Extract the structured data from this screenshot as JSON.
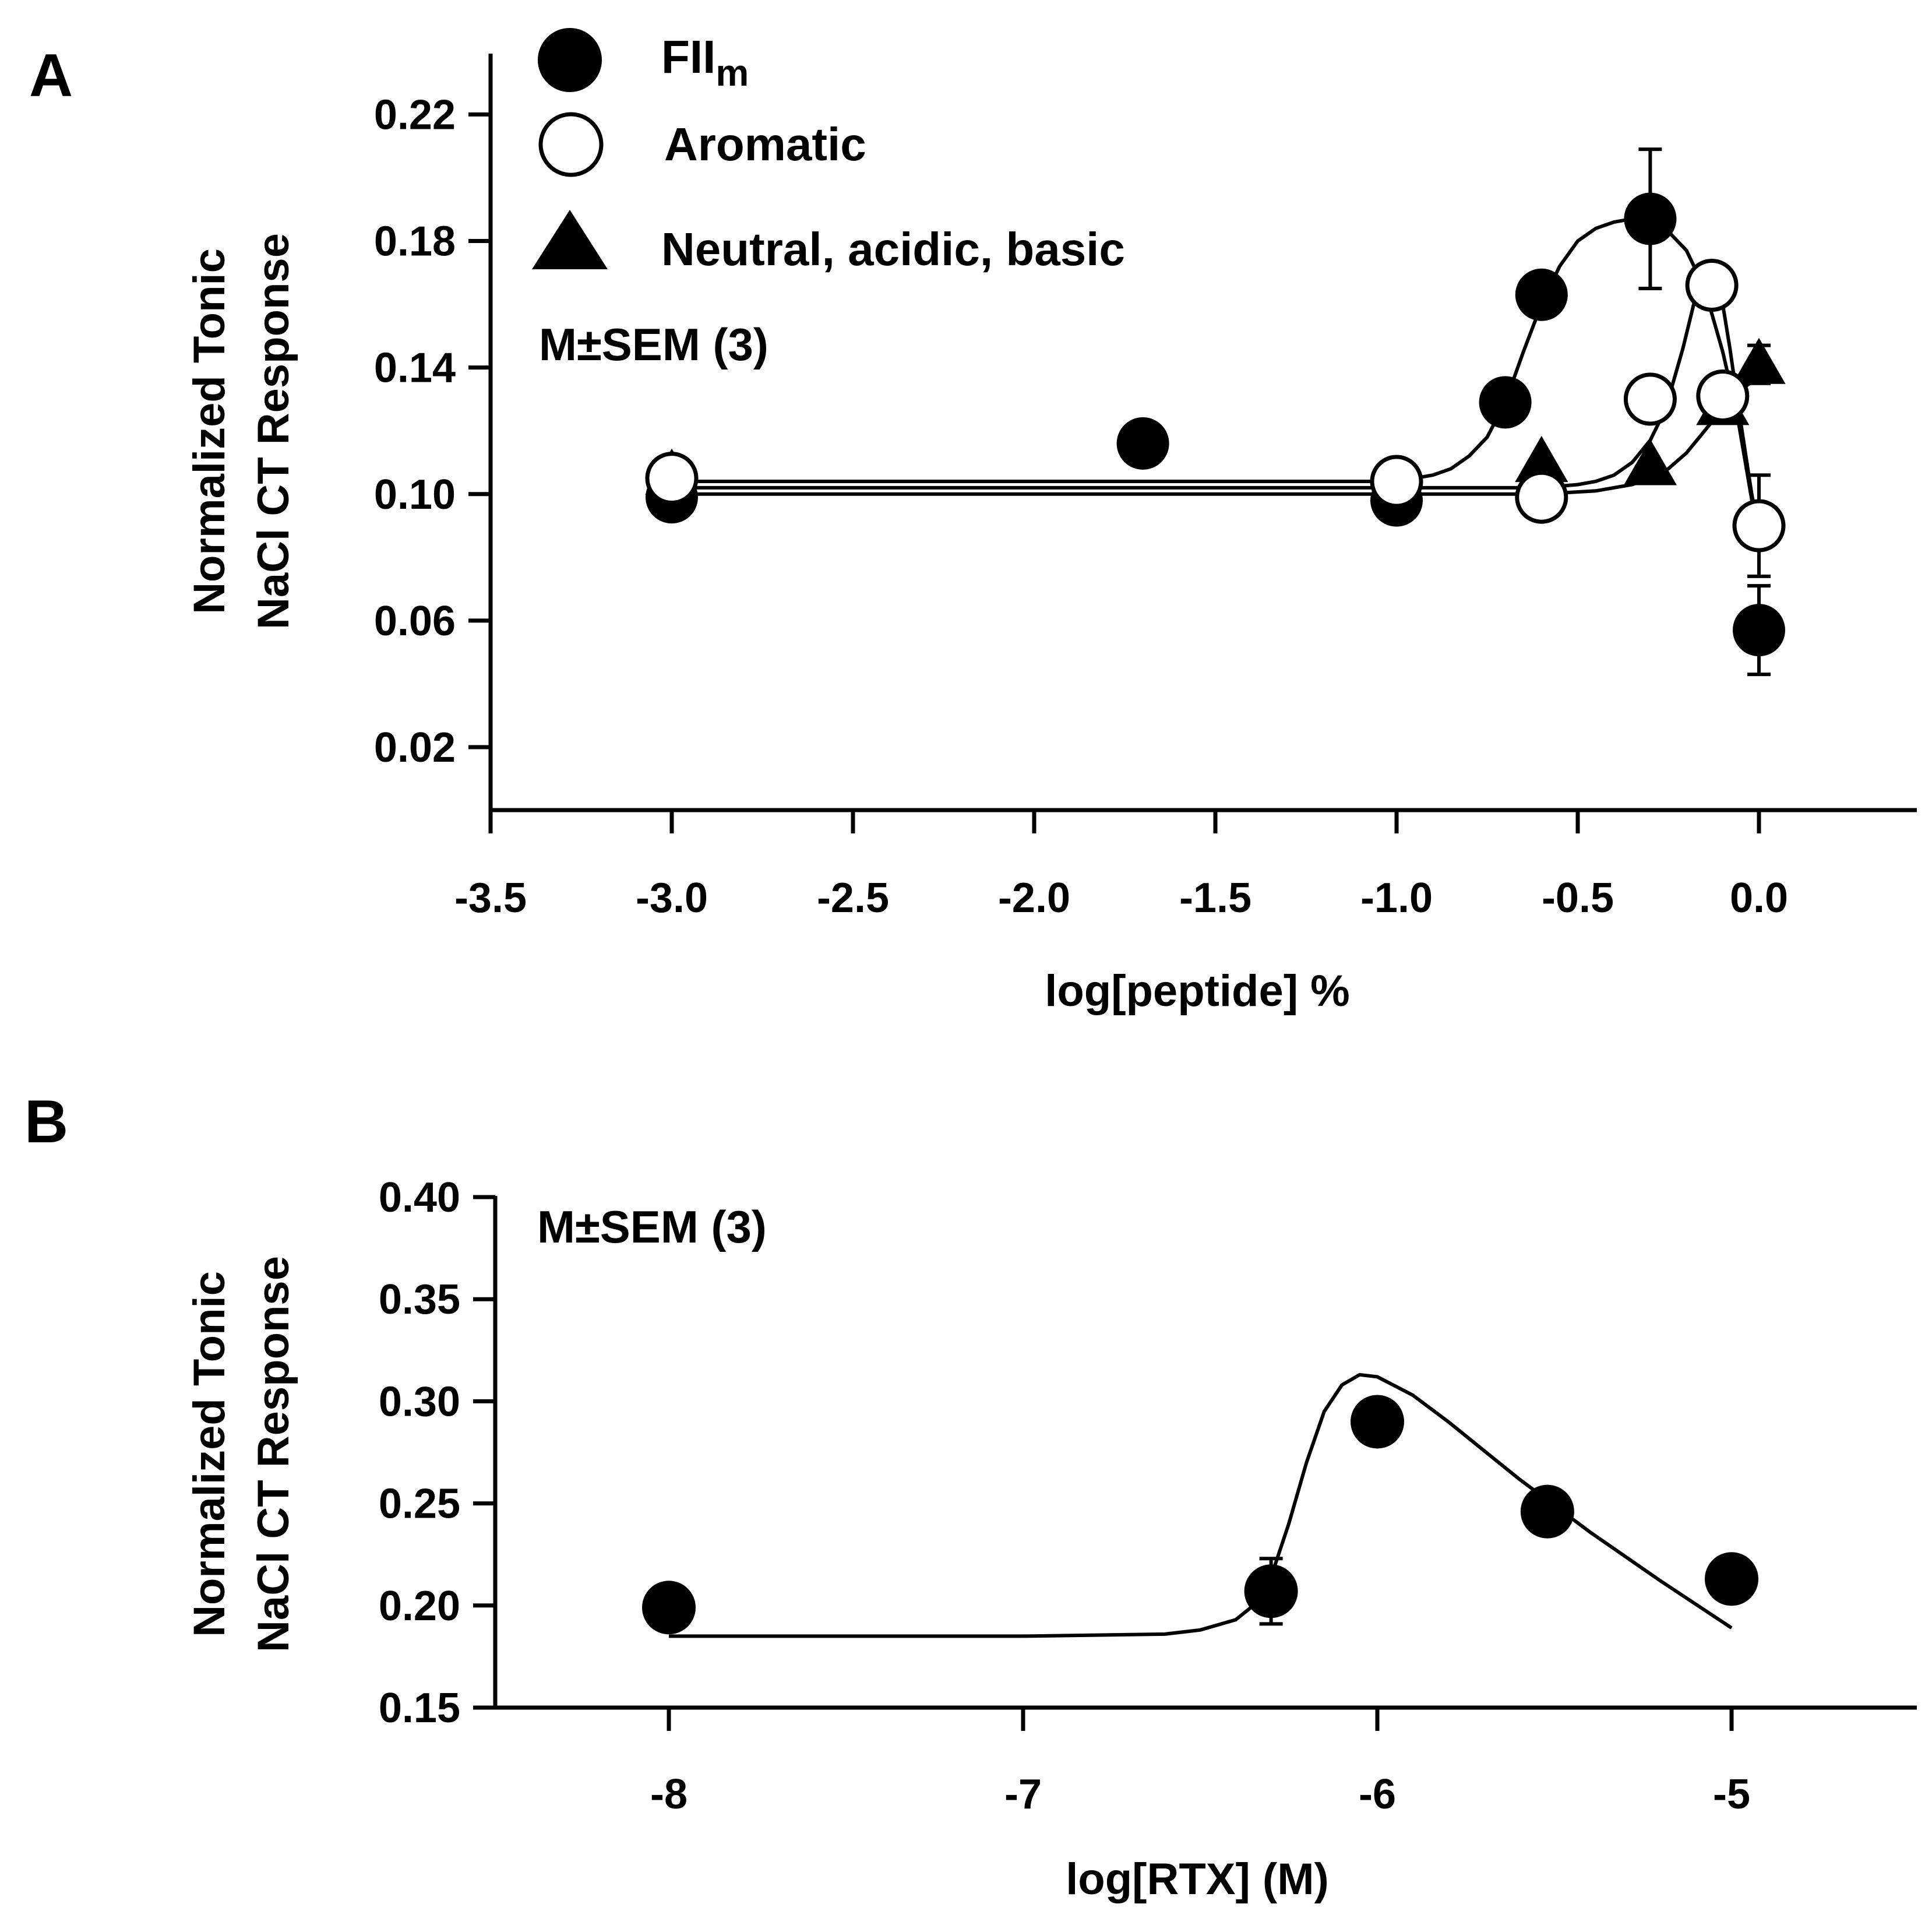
{
  "chart_data": [
    {
      "panel": "A",
      "type": "scatter",
      "xlabel": "log[peptide] %",
      "ylabel": [
        "Normalized Tonic",
        "NaCl CT Response"
      ],
      "xlim": [
        -3.5,
        0.45
      ],
      "ylim": [
        0.0,
        0.24
      ],
      "xticks": [
        -3.5,
        -3.0,
        -2.5,
        -2.0,
        -1.5,
        -1.0,
        -0.5,
        0.0
      ],
      "xtick_labels": [
        "-3.5",
        "-3.0",
        "-2.5",
        "-2.0",
        "-1.5",
        "-1.0",
        "-0.5",
        "0.0"
      ],
      "yticks": [
        0.02,
        0.06,
        0.1,
        0.14,
        0.18,
        0.22
      ],
      "ytick_labels": [
        "0.02",
        "0.06",
        "0.10",
        "0.14",
        "0.18",
        "0.22"
      ],
      "annotation": "M±SEM (3)",
      "legend": [
        {
          "marker": "filled-circle",
          "label": "FII",
          "subscript": "m"
        },
        {
          "marker": "open-circle",
          "label": "Aromatic",
          "subscript": ""
        },
        {
          "marker": "filled-triangle",
          "label": "Neutral, acidic, basic",
          "subscript": ""
        }
      ],
      "series": [
        {
          "name": "FIIm",
          "marker": "filled-circle",
          "x": [
            -3.0,
            -1.7,
            -1.0,
            -0.7,
            -0.6,
            -0.3,
            -0.13,
            0.0
          ],
          "y": [
            0.099,
            0.116,
            0.098,
            0.129,
            0.163,
            0.187,
            0.166,
            0.057
          ],
          "yerr": [
            0,
            0,
            0,
            0,
            0,
            0.022,
            0,
            0.014
          ],
          "fit_x": [
            -3.0,
            -1.0,
            -0.95,
            -0.9,
            -0.85,
            -0.8,
            -0.75,
            -0.7,
            -0.65,
            -0.6,
            -0.55,
            -0.5,
            -0.45,
            -0.4,
            -0.35,
            -0.3,
            -0.25,
            -0.2,
            -0.15,
            -0.1,
            -0.06,
            -0.03,
            0.0
          ],
          "fit_y": [
            0.104,
            0.104,
            0.105,
            0.106,
            0.108,
            0.112,
            0.118,
            0.129,
            0.145,
            0.16,
            0.172,
            0.18,
            0.184,
            0.186,
            0.187,
            0.186,
            0.183,
            0.177,
            0.165,
            0.145,
            0.125,
            0.105,
            0.085
          ]
        },
        {
          "name": "Aromatic",
          "marker": "open-circle",
          "x": [
            -3.0,
            -1.0,
            -0.6,
            -0.3,
            -0.13,
            -0.1,
            0.0
          ],
          "y": [
            0.105,
            0.104,
            0.099,
            0.13,
            0.166,
            0.131,
            0.09
          ],
          "yerr": [
            0,
            0,
            0,
            0,
            0,
            0,
            0.016
          ],
          "fit_x": [
            -3.0,
            -1.0,
            -0.6,
            -0.5,
            -0.45,
            -0.4,
            -0.35,
            -0.3,
            -0.27,
            -0.24,
            -0.21,
            -0.18,
            -0.16,
            -0.14,
            -0.12,
            -0.1,
            -0.08,
            -0.06,
            -0.04,
            -0.02,
            0.0
          ],
          "fit_y": [
            0.102,
            0.102,
            0.102,
            0.103,
            0.104,
            0.106,
            0.11,
            0.117,
            0.124,
            0.134,
            0.146,
            0.16,
            0.168,
            0.172,
            0.17,
            0.16,
            0.146,
            0.13,
            0.115,
            0.1,
            0.088
          ]
        },
        {
          "name": "Neutral, acidic, basic",
          "marker": "filled-triangle",
          "x": [
            -3.0,
            -1.0,
            -0.6,
            -0.3,
            -0.1,
            0.0
          ],
          "y": [
            0.106,
            0.104,
            0.11,
            0.109,
            0.128,
            0.141
          ],
          "yerr": [
            0,
            0,
            0,
            0,
            0,
            0.006
          ],
          "fit_x": [
            -3.0,
            -1.0,
            -0.6,
            -0.45,
            -0.35,
            -0.3,
            -0.25,
            -0.2,
            -0.15,
            -0.1,
            -0.05,
            0.0
          ],
          "fit_y": [
            0.1,
            0.1,
            0.1,
            0.101,
            0.103,
            0.105,
            0.108,
            0.113,
            0.12,
            0.127,
            0.133,
            0.137
          ]
        }
      ]
    },
    {
      "panel": "B",
      "type": "scatter",
      "xlabel": "log[RTX] (M)",
      "ylabel": [
        "Normalized Tonic",
        "NaCl CT Response"
      ],
      "xlim": [
        -8.57,
        -4.5
      ],
      "ylim": [
        0.15,
        0.4
      ],
      "xticks": [
        -8,
        -7,
        -6,
        -5
      ],
      "xtick_labels": [
        "-8",
        "-7",
        "-6",
        "-5"
      ],
      "yticks": [
        0.15,
        0.2,
        0.25,
        0.3,
        0.35,
        0.4
      ],
      "ytick_labels": [
        "0.15",
        "0.20",
        "0.25",
        "0.30",
        "0.35",
        "0.40"
      ],
      "annotation": "M±SEM (3)",
      "series": [
        {
          "name": "RTX",
          "marker": "filled-circle",
          "x": [
            -8.0,
            -6.3,
            -6.0,
            -5.52,
            -5.0
          ],
          "y": [
            0.199,
            0.207,
            0.29,
            0.246,
            0.213
          ],
          "yerr": [
            0,
            0.016,
            0,
            0,
            0
          ],
          "fit_x": [
            -8.0,
            -7.0,
            -6.6,
            -6.5,
            -6.4,
            -6.35,
            -6.3,
            -6.25,
            -6.2,
            -6.15,
            -6.1,
            -6.05,
            -6.0,
            -5.9,
            -5.8,
            -5.6,
            -5.4,
            -5.2,
            -5.0
          ],
          "fit_y": [
            0.185,
            0.185,
            0.186,
            0.188,
            0.193,
            0.2,
            0.214,
            0.24,
            0.27,
            0.295,
            0.308,
            0.313,
            0.312,
            0.303,
            0.29,
            0.262,
            0.236,
            0.212,
            0.189
          ]
        }
      ]
    }
  ]
}
